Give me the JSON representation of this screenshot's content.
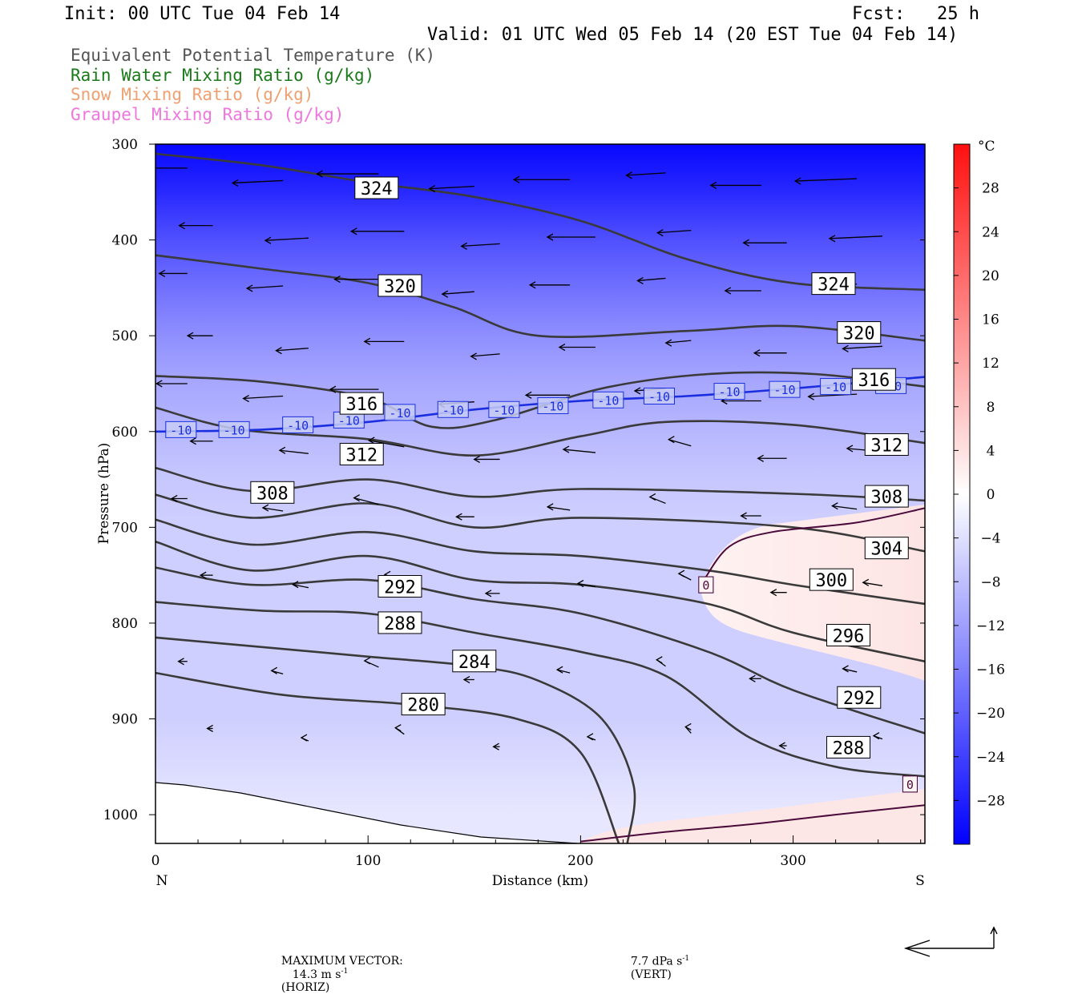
{
  "header": {
    "init": "Init: 00 UTC Tue 04 Feb 14",
    "fcst": "Fcst:   25 h",
    "valid": "Valid: 01 UTC Wed 05 Feb 14 (20 EST Tue 04 Feb 14)"
  },
  "legend": [
    {
      "text": "Equivalent Potential Temperature (K)",
      "color": "#555555"
    },
    {
      "text": "Rain Water Mixing Ratio (g/kg)",
      "color": "#1a7a1a"
    },
    {
      "text": "Snow Mixing Ratio (g/kg)",
      "color": "#f0a070"
    },
    {
      "text": "Graupel Mixing Ratio (g/kg)",
      "color": "#ee77dd"
    }
  ],
  "chart_data": {
    "type": "cross-section contour",
    "xlabel": "Distance (km)",
    "ylabel": "Pressure (hPa)",
    "xlim": [
      0,
      362
    ],
    "ylim": [
      1030,
      300
    ],
    "x_ticks": [
      0,
      100,
      200,
      300
    ],
    "x_tick_labels": [
      "0",
      "100",
      "200",
      "300"
    ],
    "x_end_labels": {
      "left": "N",
      "right": "S"
    },
    "y_ticks": [
      300,
      400,
      500,
      600,
      700,
      800,
      900,
      1000
    ],
    "y_tick_labels": [
      "300",
      "400",
      "500",
      "600",
      "700",
      "800",
      "900",
      "1000"
    ],
    "theta_e_contours": [
      {
        "label": "324",
        "label_at": [
          [
            104,
            346
          ],
          [
            319,
            446
          ]
        ],
        "points": [
          [
            0,
            310
          ],
          [
            50,
            322
          ],
          [
            100,
            340
          ],
          [
            150,
            355
          ],
          [
            200,
            380
          ],
          [
            250,
            420
          ],
          [
            300,
            445
          ],
          [
            362,
            452
          ]
        ]
      },
      {
        "label": "320",
        "label_at": [
          [
            115,
            448
          ],
          [
            331,
            497
          ]
        ],
        "points": [
          [
            0,
            416
          ],
          [
            50,
            430
          ],
          [
            100,
            445
          ],
          [
            140,
            470
          ],
          [
            180,
            500
          ],
          [
            250,
            495
          ],
          [
            300,
            490
          ],
          [
            362,
            505
          ]
        ]
      },
      {
        "label": "316",
        "label_at": [
          [
            97,
            571
          ],
          [
            338,
            546
          ]
        ],
        "points": [
          [
            0,
            542
          ],
          [
            50,
            548
          ],
          [
            100,
            565
          ],
          [
            130,
            595
          ],
          [
            160,
            588
          ],
          [
            210,
            555
          ],
          [
            260,
            540
          ],
          [
            310,
            540
          ],
          [
            362,
            553
          ]
        ]
      },
      {
        "label": "312",
        "label_at": [
          [
            97,
            624
          ],
          [
            344,
            614
          ]
        ],
        "points": [
          [
            0,
            575
          ],
          [
            40,
            598
          ],
          [
            100,
            608
          ],
          [
            150,
            625
          ],
          [
            200,
            605
          ],
          [
            240,
            590
          ],
          [
            300,
            593
          ],
          [
            362,
            612
          ]
        ]
      },
      {
        "label": "308",
        "label_at": [
          [
            55,
            664
          ],
          [
            344,
            668
          ]
        ],
        "points": [
          [
            0,
            638
          ],
          [
            45,
            662
          ],
          [
            100,
            650
          ],
          [
            150,
            668
          ],
          [
            200,
            660
          ],
          [
            300,
            665
          ],
          [
            362,
            672
          ]
        ]
      },
      {
        "label": "304",
        "label_at": [
          [
            344,
            722
          ]
        ],
        "points": [
          [
            0,
            666
          ],
          [
            45,
            690
          ],
          [
            100,
            675
          ],
          [
            150,
            700
          ],
          [
            200,
            690
          ],
          [
            300,
            700
          ],
          [
            362,
            725
          ]
        ]
      },
      {
        "label": "300",
        "label_at": [
          [
            318,
            755
          ]
        ],
        "points": [
          [
            0,
            692
          ],
          [
            45,
            718
          ],
          [
            100,
            705
          ],
          [
            150,
            725
          ],
          [
            200,
            730
          ],
          [
            260,
            745
          ],
          [
            300,
            760
          ],
          [
            362,
            780
          ]
        ]
      },
      {
        "label": "296",
        "label_at": [
          [
            326,
            813
          ]
        ],
        "points": [
          [
            0,
            715
          ],
          [
            45,
            745
          ],
          [
            100,
            730
          ],
          [
            150,
            755
          ],
          [
            200,
            760
          ],
          [
            260,
            780
          ],
          [
            300,
            810
          ],
          [
            362,
            840
          ]
        ]
      },
      {
        "label": "292",
        "label_at": [
          [
            115,
            762
          ],
          [
            331,
            878
          ]
        ],
        "points": [
          [
            0,
            742
          ],
          [
            45,
            760
          ],
          [
            100,
            755
          ],
          [
            150,
            775
          ],
          [
            200,
            790
          ],
          [
            260,
            830
          ],
          [
            300,
            870
          ],
          [
            362,
            915
          ]
        ]
      },
      {
        "label": "288",
        "label_at": [
          [
            115,
            800
          ],
          [
            326,
            930
          ]
        ],
        "points": [
          [
            0,
            778
          ],
          [
            50,
            787
          ],
          [
            100,
            790
          ],
          [
            150,
            810
          ],
          [
            200,
            830
          ],
          [
            240,
            855
          ],
          [
            280,
            920
          ],
          [
            320,
            950
          ],
          [
            362,
            960
          ]
        ]
      },
      {
        "label": "284",
        "label_at": [
          [
            150,
            840
          ]
        ],
        "points": [
          [
            0,
            815
          ],
          [
            50,
            825
          ],
          [
            100,
            835
          ],
          [
            150,
            845
          ],
          [
            180,
            860
          ],
          [
            210,
            900
          ],
          [
            225,
            970
          ],
          [
            222,
            1030
          ]
        ]
      },
      {
        "label": "280",
        "label_at": [
          [
            126,
            885
          ]
        ],
        "points": [
          [
            0,
            852
          ],
          [
            60,
            875
          ],
          [
            120,
            885
          ],
          [
            170,
            900
          ],
          [
            200,
            935
          ],
          [
            218,
            1030
          ]
        ]
      }
    ],
    "temperature_contours": [
      {
        "label": "-10",
        "color": "#1a2ee0",
        "points": [
          [
            0,
            600
          ],
          [
            50,
            598
          ],
          [
            100,
            590
          ],
          [
            150,
            577
          ],
          [
            200,
            568
          ],
          [
            250,
            563
          ],
          [
            300,
            555
          ],
          [
            362,
            543
          ]
        ]
      },
      {
        "label": "0",
        "color": "#4a0a3a",
        "points": [
          [
            258,
            755
          ],
          [
            270,
            720
          ],
          [
            290,
            705
          ],
          [
            330,
            695
          ],
          [
            362,
            680
          ]
        ]
      },
      {
        "label": "0",
        "color": "#4a0a3a",
        "points": [
          [
            200,
            1028
          ],
          [
            240,
            1018
          ],
          [
            280,
            1010
          ],
          [
            320,
            1000
          ],
          [
            362,
            990
          ]
        ]
      }
    ],
    "temperature_labels": [
      {
        "text": "-10",
        "at": [
          [
            12,
            598
          ],
          [
            37,
            598
          ],
          [
            67,
            593
          ],
          [
            91,
            588
          ],
          [
            115,
            580
          ],
          [
            140,
            577
          ],
          [
            164,
            577
          ],
          [
            187,
            573
          ],
          [
            213,
            567
          ],
          [
            237,
            563
          ],
          [
            270,
            558
          ],
          [
            296,
            556
          ],
          [
            320,
            553
          ],
          [
            346,
            552
          ]
        ]
      },
      {
        "text": "0",
        "at": [
          [
            259,
            760
          ],
          [
            355,
            968
          ]
        ]
      }
    ],
    "fill_scale": {
      "unit": "°C",
      "tick_labels": [
        "28",
        "24",
        "20",
        "16",
        "12",
        "8",
        "4",
        "0",
        "−4",
        "−8",
        "−12",
        "−16",
        "−20",
        "−24",
        "−28"
      ],
      "tick_values": [
        28,
        24,
        20,
        16,
        12,
        8,
        4,
        0,
        -4,
        -8,
        -12,
        -16,
        -20,
        -24,
        -28
      ],
      "min": -32,
      "max": 32,
      "neg_color": "#0000ff",
      "pos_color": "#ff1010",
      "zero_color": "#ffffff"
    },
    "temperature_field": [
      {
        "p": 300,
        "t": -31
      },
      {
        "p": 350,
        "t": -27
      },
      {
        "p": 400,
        "t": -22
      },
      {
        "p": 450,
        "t": -18
      },
      {
        "p": 500,
        "t": -14
      },
      {
        "p": 550,
        "t": -11
      },
      {
        "p": 600,
        "t": -9
      },
      {
        "p": 650,
        "t": -7
      },
      {
        "p": 700,
        "t": -6
      },
      {
        "p": 800,
        "t": -6
      },
      {
        "p": 900,
        "t": -6
      },
      {
        "p": 1000,
        "t": -3
      }
    ],
    "wind_vectors_note": "horizontal-vertical wind vectors",
    "max_vector": {
      "label": "MAXIMUM VECTOR:",
      "horiz_value": "14.3 m s",
      "horiz_exp": "-1",
      "horiz_tag": "(HORIZ)",
      "vert_value": "7.7 dPa s",
      "vert_exp": "-1",
      "vert_tag": "(VERT)"
    }
  }
}
